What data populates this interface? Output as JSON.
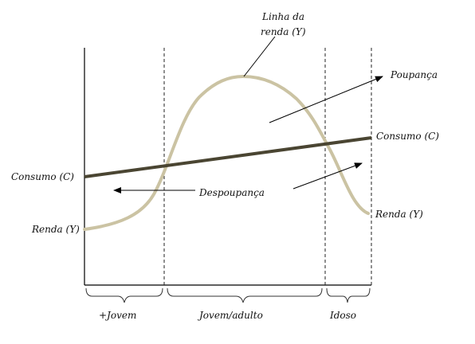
{
  "labels": {
    "income_line_line1": "Linha da",
    "income_line_line2": "renda (Y)",
    "savings": "Poupança",
    "consumption_right": "Consumo (C)",
    "consumption_left": "Consumo (C)",
    "dissaving": "Despoupança",
    "income_right": "Renda (Y)",
    "income_left": "Renda (Y)"
  },
  "phases": [
    {
      "label": "+Jovem"
    },
    {
      "label": "Jovem/adulto"
    },
    {
      "label": "Idoso"
    }
  ],
  "colors": {
    "income_curve": "#cbc3a3",
    "consumption_line": "#4a4532",
    "axis": "#000000",
    "dashed": "#222222",
    "brace": "#333333",
    "arrow": "#000000"
  }
}
